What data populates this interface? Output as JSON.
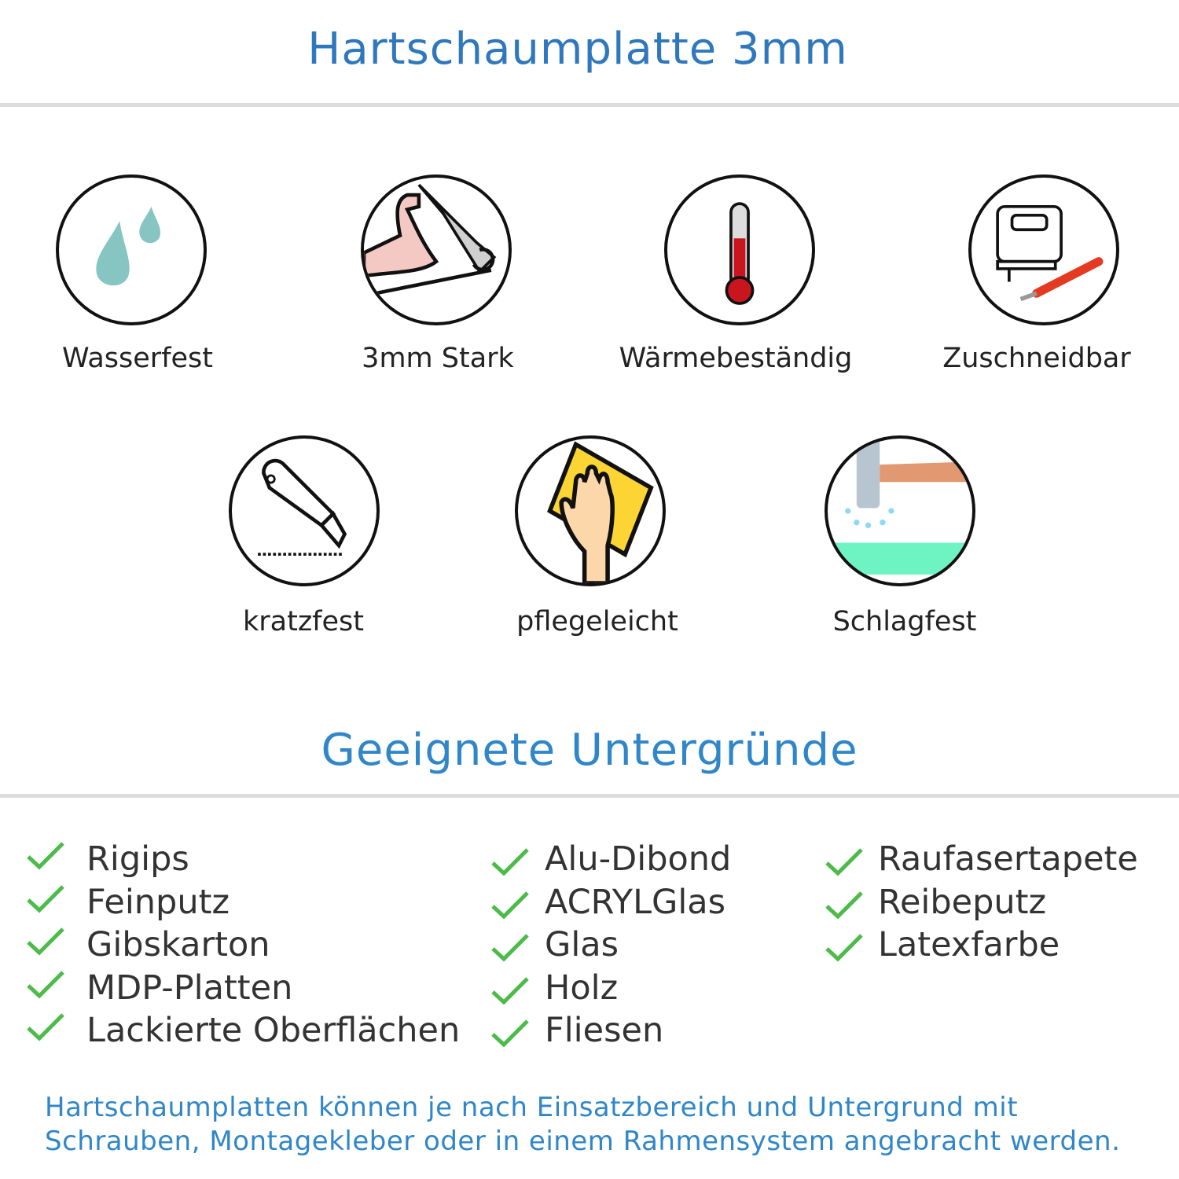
{
  "header": {
    "title": "Hartschaumplatte 3mm"
  },
  "features": [
    {
      "label": "Wasserfest",
      "icon": "water-drops-icon"
    },
    {
      "label": "3mm Stark",
      "icon": "strong-arm-icon"
    },
    {
      "label": "Wärmebeständig",
      "icon": "thermometer-icon"
    },
    {
      "label": "Zuschneidbar",
      "icon": "jigsaw-knife-icon"
    },
    {
      "label": "kratzfest",
      "icon": "cutter-knife-icon"
    },
    {
      "label": "pflegeleicht",
      "icon": "hand-cloth-icon"
    },
    {
      "label": "Schlagfest",
      "icon": "hammer-icon"
    }
  ],
  "surfaces": {
    "title": "Geeignete Untergründe",
    "check_color": "#4cbb4a",
    "columns": [
      [
        "Rigips",
        "Feinputz",
        "Gibskarton",
        "MDP-Platten",
        "Lackierte Oberflächen"
      ],
      [
        "Alu-Dibond",
        "ACRYLGlas",
        "Glas",
        "Holz",
        "Fliesen"
      ],
      [
        "Raufasertapete",
        "Reibeputz",
        "Latexfarbe"
      ]
    ]
  },
  "footer": {
    "line1": "Hartschaumplatten können je nach Einsatzbereich und Untergrund mit",
    "line2": "Schrauben, Montagekleber oder in einem Rahmensystem angebracht werden."
  },
  "colors": {
    "title": "#2f78bd",
    "accent": "#2f86c8"
  }
}
